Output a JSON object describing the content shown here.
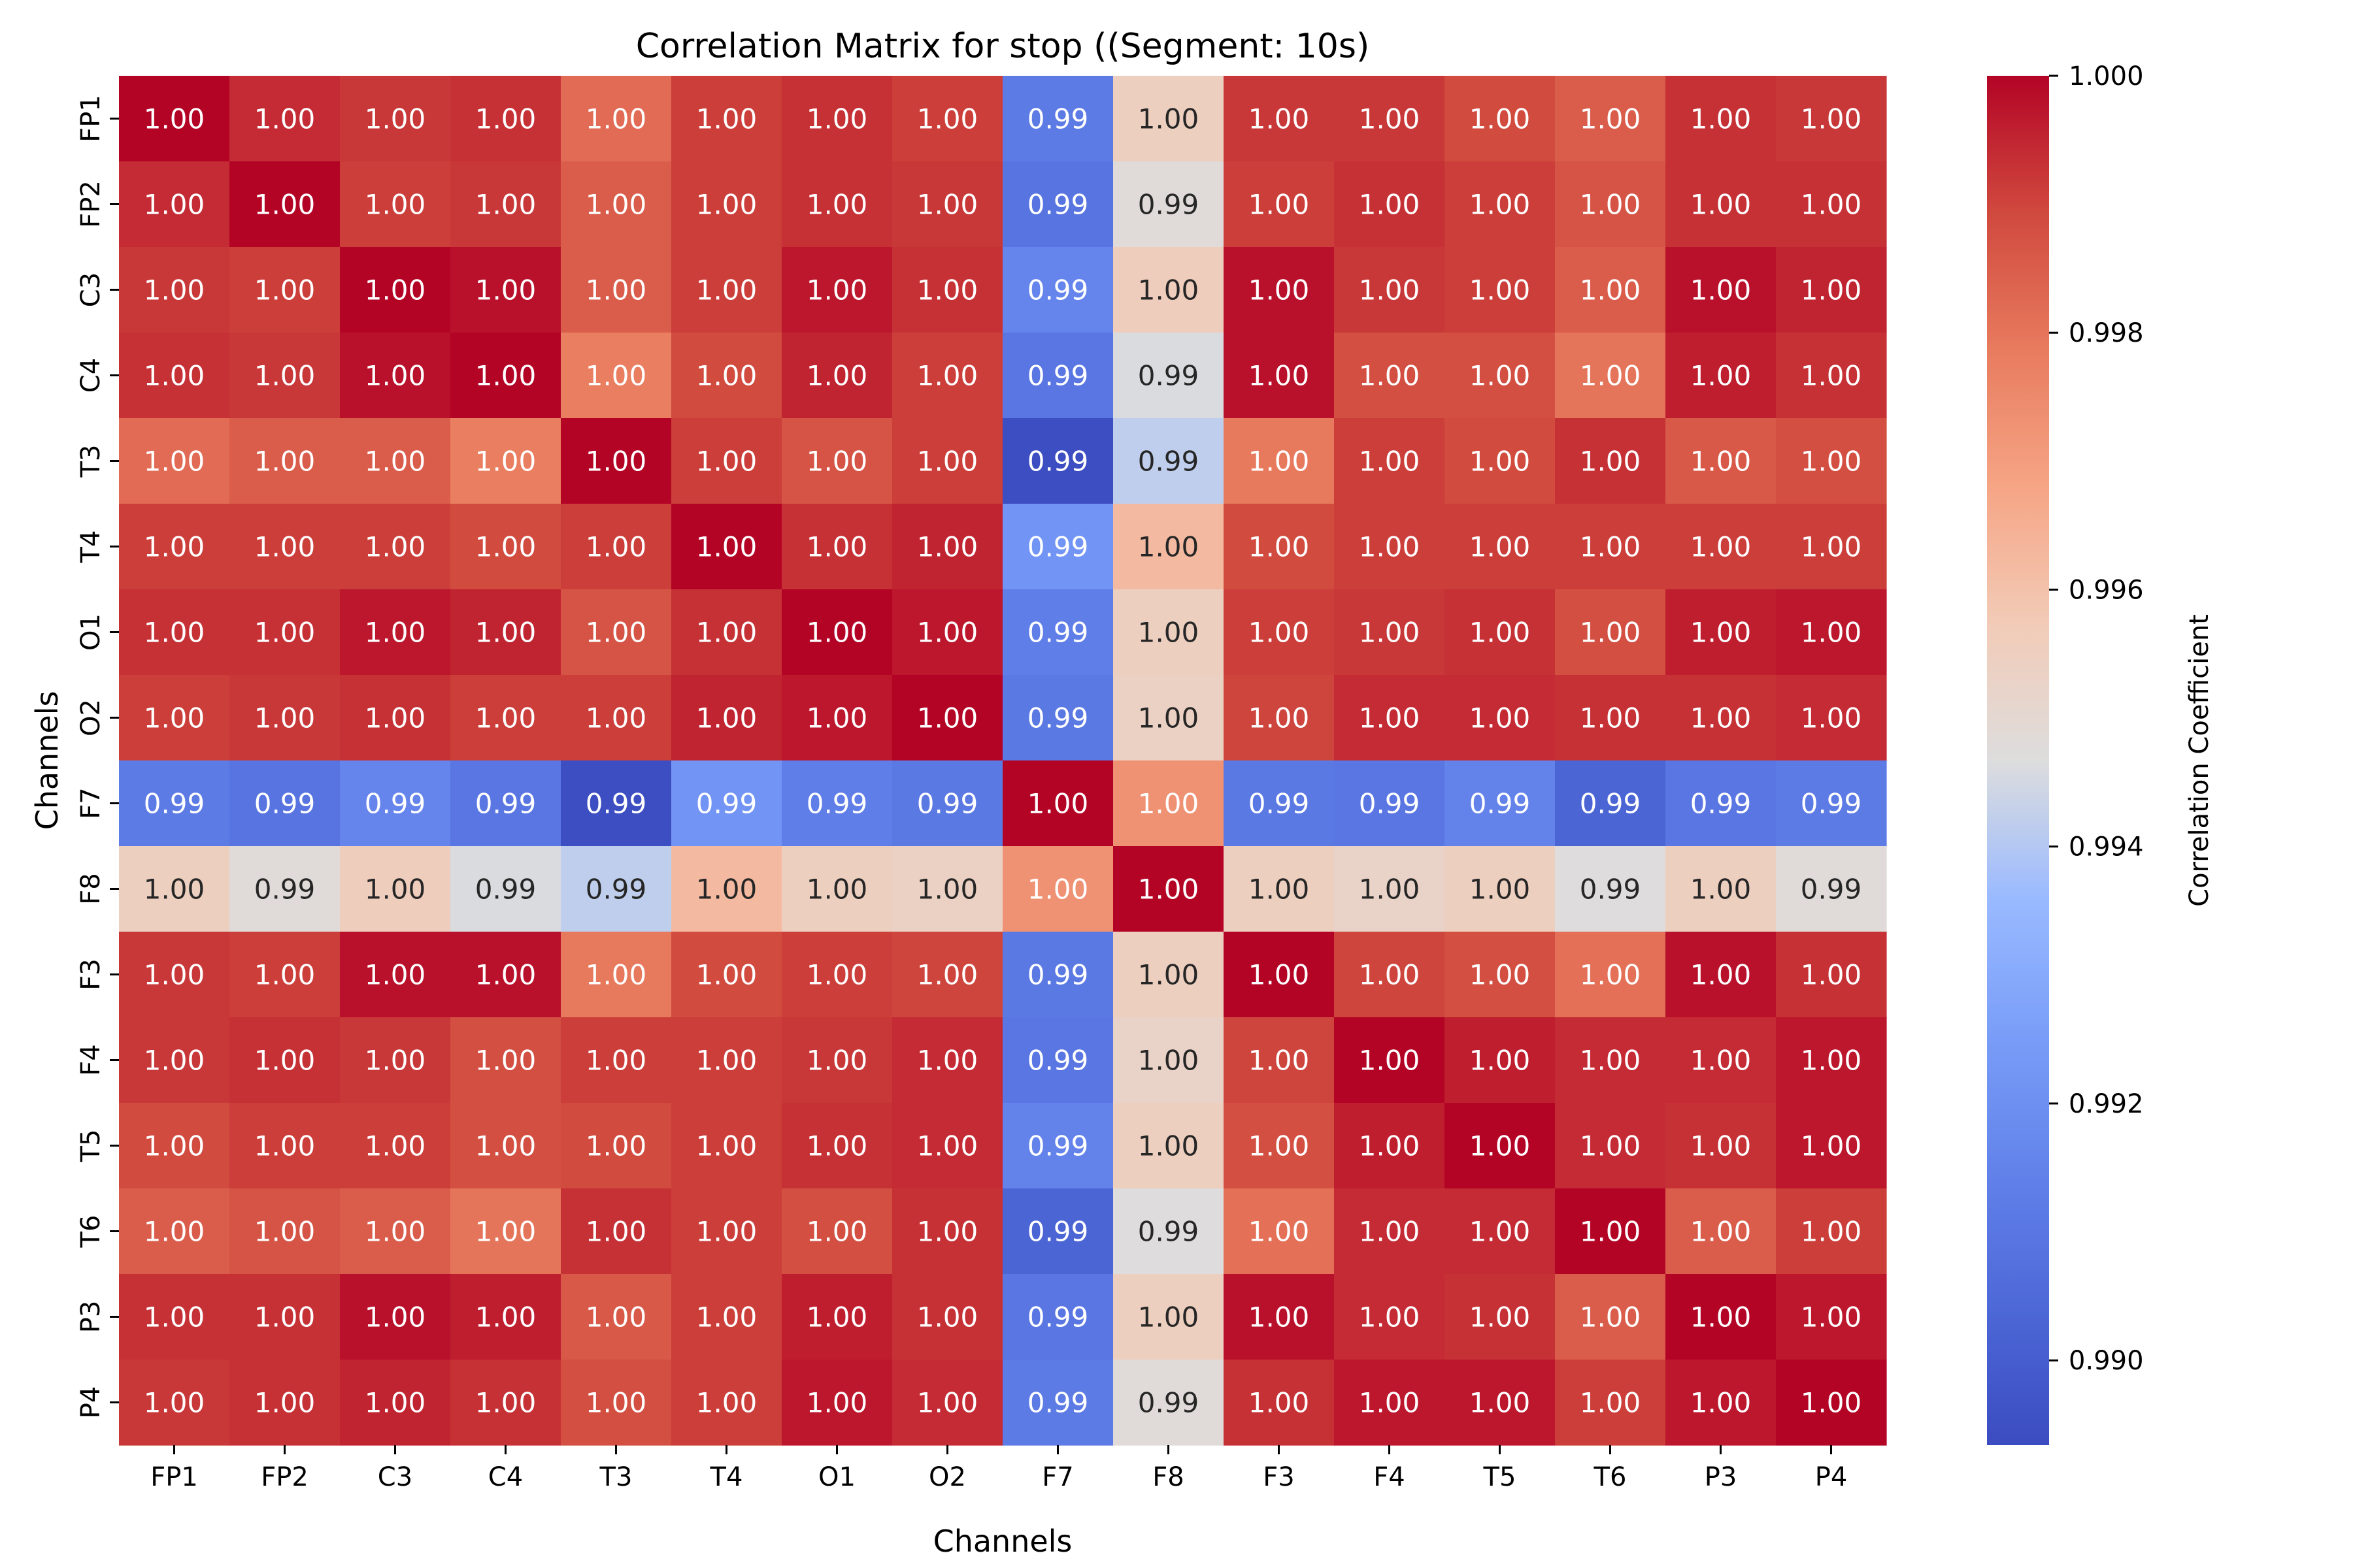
{
  "chart_data": {
    "type": "heatmap",
    "title": "Correlation Matrix for stop ((Segment: 10s)",
    "xlabel": "Channels",
    "ylabel": "Channels",
    "colorbar_label": "Correlation Coefficient",
    "colormap": "coolwarm",
    "vlim": [
      0.98934,
      1.0
    ],
    "colorbar_ticks": [
      "0.990",
      "0.992",
      "0.994",
      "0.996",
      "0.998",
      "1.000"
    ],
    "annotation_format": "2 decimals",
    "channels": [
      "FP1",
      "FP2",
      "C3",
      "C4",
      "T3",
      "T4",
      "O1",
      "O2",
      "F7",
      "F8",
      "F3",
      "F4",
      "T5",
      "T6",
      "P3",
      "P4"
    ],
    "values": [
      [
        1.0,
        0.9994,
        0.9992,
        0.9993,
        0.9982,
        0.9991,
        0.9993,
        0.9991,
        0.9912,
        0.9955,
        0.9992,
        0.9992,
        0.9989,
        0.9985,
        0.9993,
        0.9992
      ],
      [
        0.9994,
        1.0,
        0.9991,
        0.9992,
        0.9985,
        0.9991,
        0.9993,
        0.9992,
        0.9909,
        0.9948,
        0.9991,
        0.9993,
        0.9991,
        0.9987,
        0.9993,
        0.9993
      ],
      [
        0.9992,
        0.9991,
        1.0,
        0.9998,
        0.9985,
        0.9991,
        0.9997,
        0.9993,
        0.9916,
        0.9956,
        0.9998,
        0.9992,
        0.9991,
        0.9985,
        0.9998,
        0.9995
      ],
      [
        0.9993,
        0.9992,
        0.9998,
        1.0,
        0.9978,
        0.9989,
        0.9995,
        0.9991,
        0.991,
        0.9946,
        0.9998,
        0.9988,
        0.9988,
        0.998,
        0.9996,
        0.9993
      ],
      [
        0.9982,
        0.9985,
        0.9985,
        0.9978,
        1.0,
        0.9991,
        0.9987,
        0.9991,
        0.9894,
        0.9942,
        0.9979,
        0.9991,
        0.9989,
        0.9993,
        0.9986,
        0.9988
      ],
      [
        0.9991,
        0.9991,
        0.9991,
        0.9989,
        0.9991,
        1.0,
        0.9993,
        0.9995,
        0.9922,
        0.9962,
        0.9989,
        0.9991,
        0.9991,
        0.9991,
        0.9991,
        0.9991
      ],
      [
        0.9993,
        0.9993,
        0.9997,
        0.9995,
        0.9987,
        0.9993,
        1.0,
        0.9997,
        0.9913,
        0.9955,
        0.9991,
        0.9992,
        0.9993,
        0.9988,
        0.9996,
        0.9997
      ],
      [
        0.9991,
        0.9992,
        0.9993,
        0.9991,
        0.9991,
        0.9995,
        0.9997,
        1.0,
        0.9911,
        0.9954,
        0.999,
        0.9994,
        0.9994,
        0.9993,
        0.9993,
        0.9994
      ],
      [
        0.9912,
        0.9909,
        0.9916,
        0.991,
        0.9894,
        0.9922,
        0.9913,
        0.9911,
        1.0,
        0.9973,
        0.9911,
        0.991,
        0.9915,
        0.9903,
        0.991,
        0.9912
      ],
      [
        0.9955,
        0.9948,
        0.9956,
        0.9946,
        0.9942,
        0.9962,
        0.9955,
        0.9954,
        0.9973,
        1.0,
        0.9955,
        0.9953,
        0.9955,
        0.9947,
        0.9955,
        0.9948
      ],
      [
        0.9992,
        0.9991,
        0.9998,
        0.9998,
        0.9979,
        0.9989,
        0.9991,
        0.999,
        0.9911,
        0.9955,
        1.0,
        0.999,
        0.9988,
        0.9981,
        0.9998,
        0.9993
      ],
      [
        0.9992,
        0.9993,
        0.9992,
        0.9988,
        0.9991,
        0.9991,
        0.9992,
        0.9994,
        0.991,
        0.9953,
        0.999,
        1.0,
        0.9996,
        0.9994,
        0.9994,
        0.9997
      ],
      [
        0.9989,
        0.9991,
        0.9991,
        0.9988,
        0.9989,
        0.9991,
        0.9993,
        0.9994,
        0.9915,
        0.9955,
        0.9988,
        0.9996,
        1.0,
        0.9994,
        0.9993,
        0.9997
      ],
      [
        0.9985,
        0.9987,
        0.9985,
        0.998,
        0.9993,
        0.9991,
        0.9988,
        0.9993,
        0.9903,
        0.9947,
        0.9981,
        0.9994,
        0.9994,
        1.0,
        0.9985,
        0.9991
      ],
      [
        0.9993,
        0.9993,
        0.9998,
        0.9996,
        0.9986,
        0.9991,
        0.9996,
        0.9993,
        0.991,
        0.9955,
        0.9998,
        0.9994,
        0.9993,
        0.9985,
        1.0,
        0.9997
      ],
      [
        0.9992,
        0.9993,
        0.9995,
        0.9993,
        0.9988,
        0.9991,
        0.9997,
        0.9994,
        0.9912,
        0.9948,
        0.9993,
        0.9997,
        0.9997,
        0.9991,
        0.9997,
        1.0
      ]
    ]
  }
}
